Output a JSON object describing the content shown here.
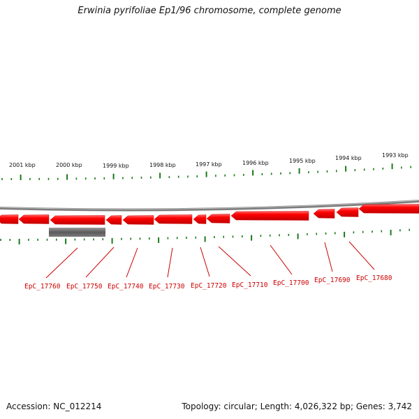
{
  "title": "Erwinia pyrifoliae Ep1/96 chromosome, complete genome",
  "footer": {
    "accession": "Accession: NC_012214",
    "summary": "Topology: circular; Length: 4,026,322 bp; Genes: 3,742"
  },
  "colors": {
    "gene": "#ff0000",
    "gene_label": "#cc0000",
    "tick": "#1a7a1a",
    "backbone": "#888888",
    "feature_bar": "#666666"
  },
  "scale_labels": [
    "2001 kbp",
    "2000 kbp",
    "1999 kbp",
    "1998 kbp",
    "1997 kbp",
    "1996 kbp",
    "1995 kbp",
    "1994 kbp",
    "1993 kbp"
  ],
  "genes": [
    {
      "label": "EpC_17760"
    },
    {
      "label": "EpC_17750"
    },
    {
      "label": "EpC_17740"
    },
    {
      "label": "EpC_17730"
    },
    {
      "label": "EpC_17720"
    },
    {
      "label": "EpC_17710"
    },
    {
      "label": "EpC_17700"
    },
    {
      "label": "EpC_17690"
    },
    {
      "label": "EpC_17680"
    }
  ]
}
